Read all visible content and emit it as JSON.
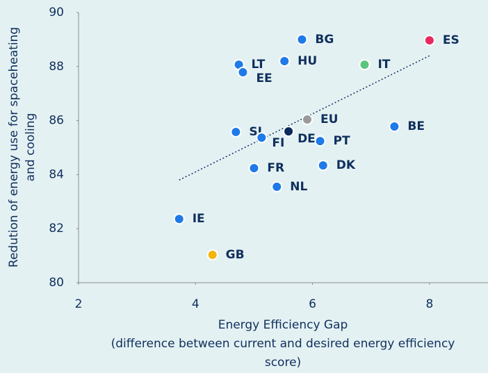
{
  "chart_data": {
    "type": "scatter",
    "x_label": [
      "Energy Efficiency Gap",
      "(difference between current and desired energy efficiency",
      "score)"
    ],
    "y_label": [
      "Redution of energy use for spaceheating",
      "and cooling"
    ],
    "xlim": [
      2,
      9
    ],
    "xticks": [
      2,
      4,
      6,
      8
    ],
    "ylim": [
      80,
      90
    ],
    "yticks": [
      80,
      82,
      84,
      86,
      88,
      90
    ],
    "series": [
      {
        "labels": [
          "BG",
          "ES",
          "HU",
          "LT",
          "EE",
          "IT",
          "EU",
          "SI",
          "DE",
          "FI",
          "PT",
          "BE",
          "FR",
          "DK",
          "NL",
          "IE",
          "GB"
        ],
        "x": [
          5.82,
          8.0,
          5.52,
          4.74,
          4.81,
          6.89,
          5.91,
          4.69,
          5.59,
          5.13,
          6.13,
          7.4,
          5.0,
          6.18,
          5.39,
          3.72,
          4.29
        ],
        "values": [
          89.0,
          88.97,
          88.2,
          88.07,
          87.79,
          88.07,
          86.04,
          85.58,
          85.6,
          85.37,
          85.24,
          85.78,
          84.24,
          84.34,
          83.55,
          82.36,
          81.03
        ],
        "colors": [
          "#1f7ae8",
          "#e8295e",
          "#1f7ae8",
          "#1f7ae8",
          "#1f7ae8",
          "#5bc57e",
          "#9a9a9a",
          "#1f7ae8",
          "#0a2a5e",
          "#1f7ae8",
          "#1f7ae8",
          "#1f7ae8",
          "#1f7ae8",
          "#1f7ae8",
          "#1f7ae8",
          "#1f7ae8",
          "#f5b400"
        ]
      }
    ],
    "trendline": {
      "x": [
        3.72,
        8.0
      ],
      "y": [
        83.8,
        88.4
      ],
      "color": "#0f2f5c"
    }
  }
}
